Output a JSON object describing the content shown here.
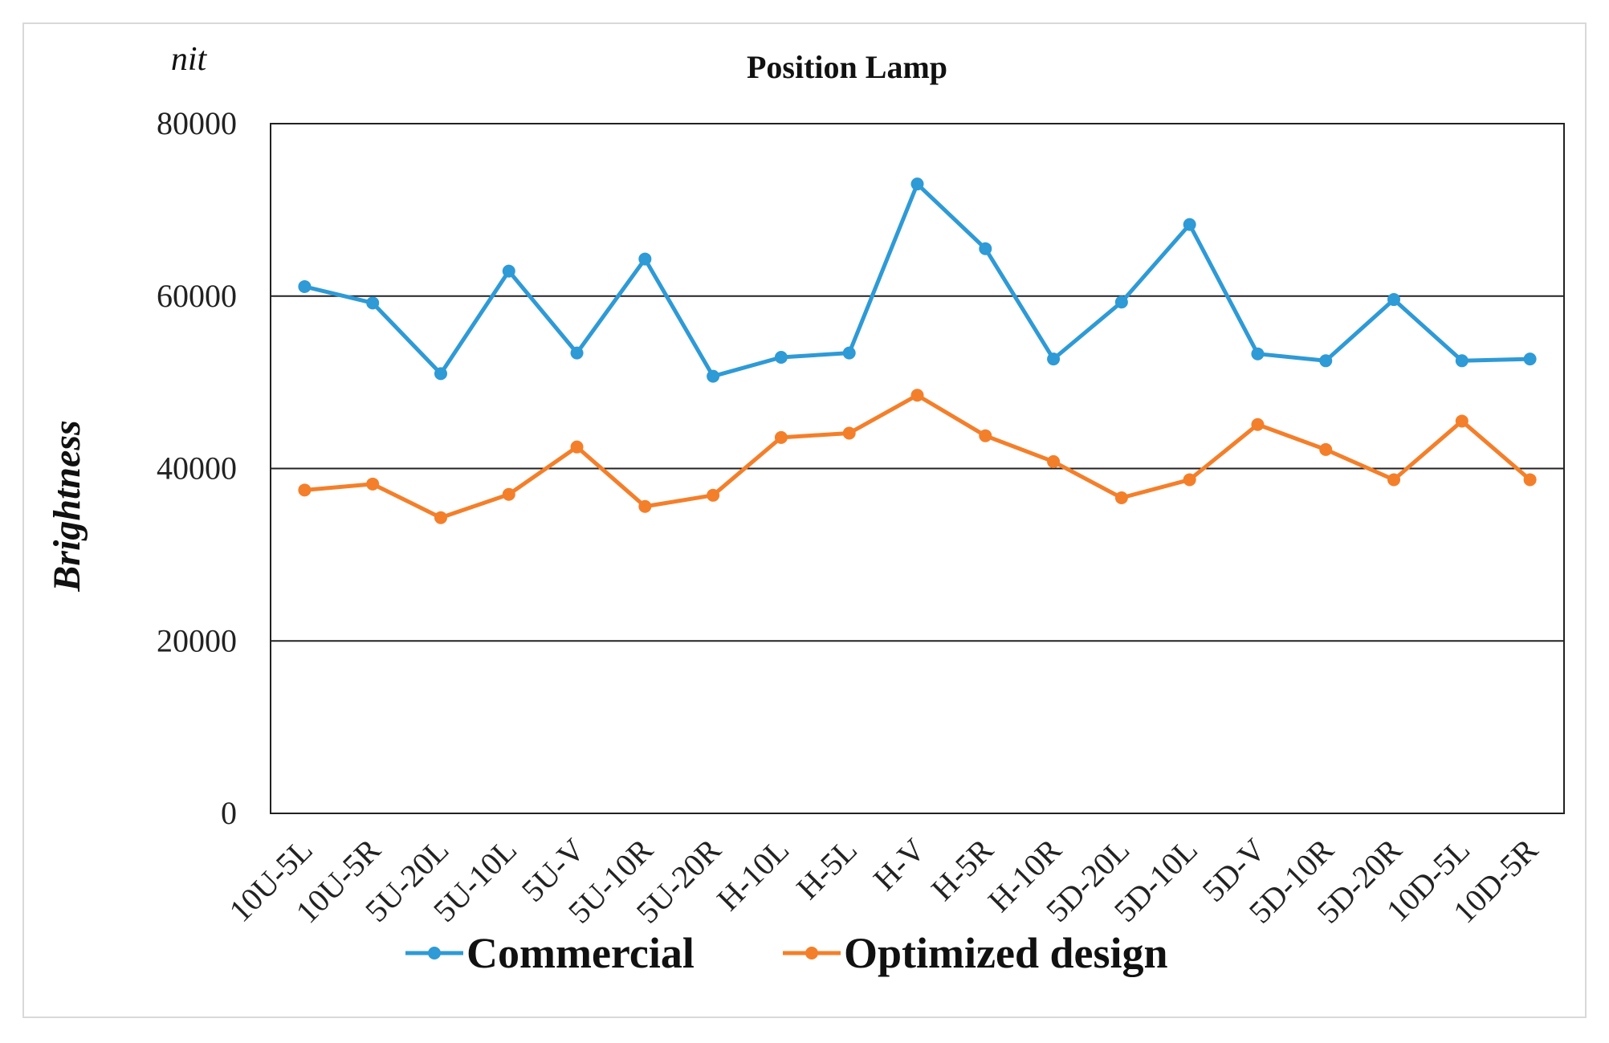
{
  "chart_data": {
    "type": "line",
    "title": "Position Lamp",
    "unit_label": "nit",
    "xlabel": "",
    "ylabel": "Brightness",
    "ylim": [
      0,
      80000
    ],
    "yticks": [
      0,
      20000,
      40000,
      60000,
      80000
    ],
    "ytick_labels": [
      "0",
      "20000",
      "40000",
      "60000",
      "80000"
    ],
    "grid": true,
    "legend_position": "bottom",
    "categories": [
      "10U-5L",
      "10U-5R",
      "5U-20L",
      "5U-10L",
      "5U-V",
      "5U-10R",
      "5U-20R",
      "H-10L",
      "H-5L",
      "H-V",
      "H-5R",
      "H-10R",
      "5D-20L",
      "5D-10L",
      "5D-V",
      "5D-10R",
      "5D-20R",
      "10D-5L",
      "10D-5R"
    ],
    "series": [
      {
        "name": "Commercial",
        "color": "#2E9AD6",
        "values": [
          61100,
          59200,
          51000,
          62900,
          53400,
          64300,
          50700,
          52900,
          53400,
          73000,
          65500,
          52700,
          59300,
          68300,
          53300,
          52500,
          59600,
          52500,
          52700
        ]
      },
      {
        "name": "Optimized design",
        "color": "#F47F2A",
        "values": [
          37500,
          38200,
          34300,
          37000,
          42500,
          35600,
          36900,
          43600,
          44100,
          48500,
          43800,
          40800,
          36600,
          38700,
          45100,
          42200,
          38700,
          45500,
          38700
        ]
      }
    ]
  }
}
